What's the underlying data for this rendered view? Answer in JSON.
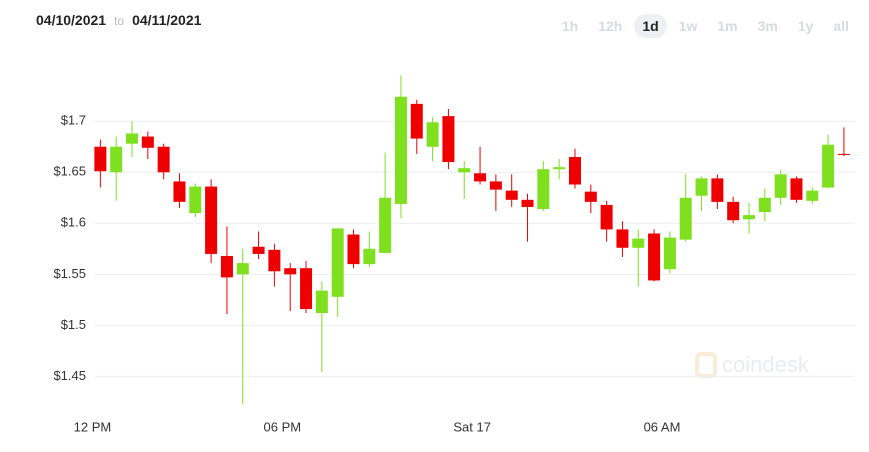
{
  "header": {
    "from": "04/10/2021",
    "separator": "to",
    "to": "04/11/2021",
    "ranges": [
      "1h",
      "12h",
      "1d",
      "1w",
      "1m",
      "3m",
      "1y",
      "all"
    ],
    "active_index": 2
  },
  "watermark": "coindesk",
  "chart_data": {
    "type": "candlestick",
    "up_color": "#7ee01e",
    "down_color": "#ee0000",
    "grid": true,
    "xlim": [
      -1.5,
      24.1
    ],
    "xticks": [
      {
        "value": 0,
        "label": "12 PM"
      },
      {
        "value": 6,
        "label": "06 PM"
      },
      {
        "value": 12,
        "label": "Sat 17"
      },
      {
        "value": 18,
        "label": "06 AM"
      }
    ],
    "ylim": [
      1.42,
      1.76
    ],
    "yticks": [
      {
        "value": 1.45,
        "label": "$1.45"
      },
      {
        "value": 1.5,
        "label": "$1.5"
      },
      {
        "value": 1.55,
        "label": "$1.55"
      },
      {
        "value": 1.6,
        "label": "$1.6"
      },
      {
        "value": 1.65,
        "label": "$1.65"
      },
      {
        "value": 1.7,
        "label": "$1.7"
      }
    ],
    "x": [
      0.25,
      0.75,
      1.25,
      1.75,
      2.25,
      2.75,
      3.25,
      3.75,
      4.25,
      4.75,
      5.25,
      5.75,
      6.25,
      6.75,
      7.25,
      7.75,
      8.25,
      8.75,
      9.25,
      9.75,
      10.25,
      10.75,
      11.25,
      11.75,
      12.25,
      12.75,
      13.25,
      13.75,
      14.25,
      14.75,
      15.25,
      15.75,
      16.25,
      16.75,
      17.25,
      17.75,
      18.25,
      18.75,
      19.25,
      19.75,
      20.25,
      20.75,
      21.25,
      21.75,
      22.25,
      22.75,
      23.25,
      23.75
    ],
    "open": [
      1.675,
      1.65,
      1.678,
      1.685,
      1.675,
      1.641,
      1.61,
      1.636,
      1.568,
      1.55,
      1.577,
      1.574,
      1.556,
      1.556,
      1.512,
      1.528,
      1.589,
      1.56,
      1.571,
      1.619,
      1.717,
      1.675,
      1.705,
      1.65,
      1.649,
      1.641,
      1.632,
      1.623,
      1.614,
      1.653,
      1.665,
      1.631,
      1.618,
      1.594,
      1.576,
      1.59,
      1.555,
      1.584,
      1.627,
      1.644,
      1.621,
      1.604,
      1.611,
      1.625,
      1.644,
      1.622,
      1.635,
      1.668
    ],
    "high": [
      1.682,
      1.685,
      1.7,
      1.69,
      1.678,
      1.649,
      1.639,
      1.643,
      1.597,
      1.575,
      1.592,
      1.58,
      1.561,
      1.563,
      1.543,
      1.595,
      1.594,
      1.592,
      1.669,
      1.745,
      1.721,
      1.704,
      1.712,
      1.661,
      1.675,
      1.648,
      1.648,
      1.629,
      1.661,
      1.663,
      1.673,
      1.638,
      1.622,
      1.602,
      1.594,
      1.594,
      1.592,
      1.648,
      1.646,
      1.648,
      1.626,
      1.62,
      1.634,
      1.652,
      1.646,
      1.635,
      1.687,
      1.694
    ],
    "low": [
      1.635,
      1.622,
      1.665,
      1.663,
      1.643,
      1.615,
      1.606,
      1.561,
      1.511,
      1.423,
      1.565,
      1.538,
      1.514,
      1.512,
      1.454,
      1.508,
      1.556,
      1.557,
      1.571,
      1.605,
      1.668,
      1.661,
      1.653,
      1.624,
      1.638,
      1.612,
      1.616,
      1.582,
      1.612,
      1.643,
      1.634,
      1.61,
      1.582,
      1.567,
      1.538,
      1.543,
      1.551,
      1.582,
      1.612,
      1.614,
      1.6,
      1.59,
      1.602,
      1.618,
      1.62,
      1.619,
      1.634,
      1.666
    ],
    "close": [
      1.651,
      1.675,
      1.688,
      1.674,
      1.65,
      1.621,
      1.636,
      1.57,
      1.547,
      1.561,
      1.57,
      1.553,
      1.55,
      1.516,
      1.534,
      1.595,
      1.56,
      1.575,
      1.625,
      1.724,
      1.683,
      1.699,
      1.66,
      1.654,
      1.641,
      1.633,
      1.623,
      1.616,
      1.653,
      1.655,
      1.638,
      1.621,
      1.594,
      1.576,
      1.585,
      1.544,
      1.586,
      1.625,
      1.644,
      1.621,
      1.603,
      1.608,
      1.625,
      1.648,
      1.623,
      1.632,
      1.677,
      1.667
    ]
  }
}
